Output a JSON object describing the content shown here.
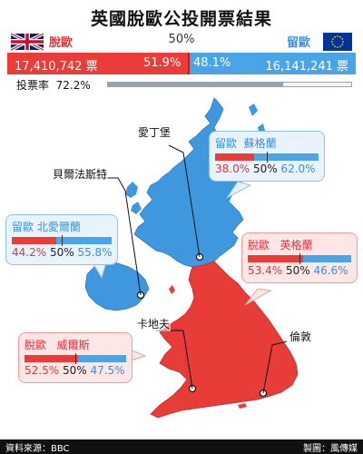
{
  "title": "英國脫歐公投開票結果",
  "header": {
    "leave_label": "脫歐",
    "remain_label": "留歐",
    "midpoint": "50%",
    "leave_votes": "17,410,742 票",
    "remain_votes": "16,141,241 票",
    "leave_pct_text": "51.9%",
    "remain_pct_text": "48.1%",
    "leave_share": 0.519
  },
  "turnout": {
    "label": "投票率",
    "value": "72.2%",
    "fraction": 0.722
  },
  "colors": {
    "leave": "#ea3d3a",
    "remain": "#4aa4e6",
    "scotland_ni": "#3f97de",
    "england_wales": "#e83c38"
  },
  "cities": {
    "edinburgh": "愛丁堡",
    "belfast": "貝爾法斯特",
    "cardiff": "卡地夫",
    "london": "倫敦"
  },
  "regions": [
    {
      "key": "scotland",
      "tag": "留歐",
      "name": "蘇格蘭",
      "leave": "38.0%",
      "mid": "50%",
      "remain": "62.0%",
      "leave_share": 0.38
    },
    {
      "key": "ni",
      "tag": "留歐",
      "name": "北愛爾蘭",
      "leave": "44.2%",
      "mid": "50%",
      "remain": "55.8%",
      "leave_share": 0.442
    },
    {
      "key": "england",
      "tag": "脫歐",
      "name": "英格蘭",
      "leave": "53.4%",
      "mid": "50%",
      "remain": "46.6%",
      "leave_share": 0.534
    },
    {
      "key": "wales",
      "tag": "脫歐",
      "name": "威爾斯",
      "leave": "52.5%",
      "mid": "50%",
      "remain": "47.5%",
      "leave_share": 0.525
    }
  ],
  "footer": {
    "source": "資料來源：BBC",
    "credit": "製圖：風傳媒"
  }
}
